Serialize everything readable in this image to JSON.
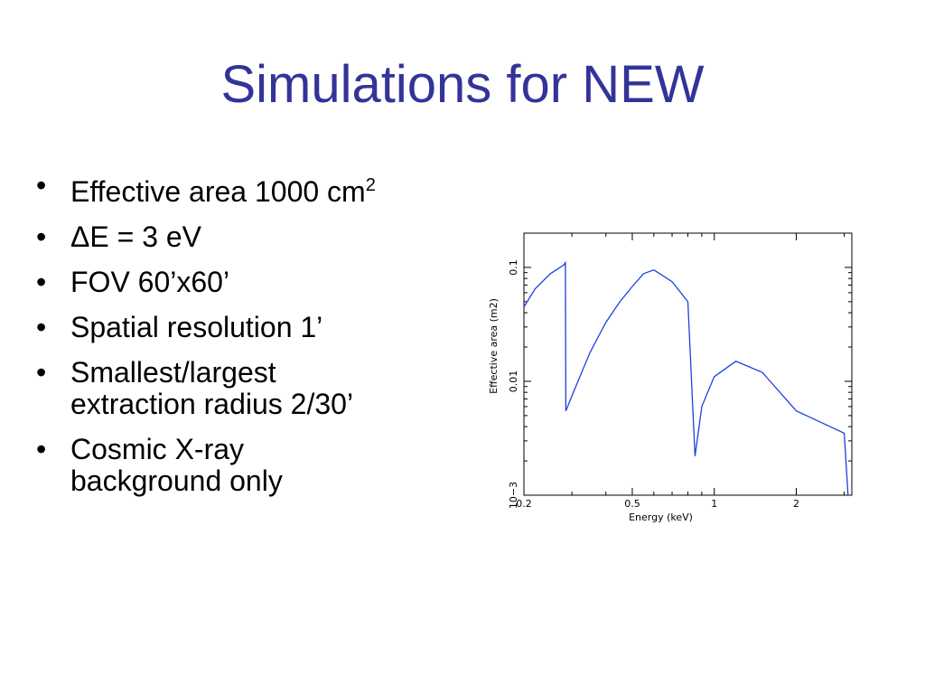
{
  "slide": {
    "title": "Simulations for NEW",
    "bullets": [
      {
        "symbol": "•",
        "lines": [
          "Effective area 1000 cm"
        ],
        "suffix": "2"
      },
      {
        "symbol": "•",
        "lines": [
          "ΔE = 3 eV"
        ]
      },
      {
        "symbol": "•",
        "lines": [
          "FOV 60’x60’"
        ]
      },
      {
        "symbol": "•",
        "lines": [
          "Spatial resolution 1’"
        ]
      },
      {
        "symbol": "•",
        "lines": [
          "Smallest/largest",
          "extraction radius 2/30’"
        ]
      },
      {
        "symbol": "•",
        "lines": [
          "Cosmic X-ray",
          "background only"
        ]
      }
    ]
  },
  "chart_data": {
    "type": "line",
    "title": "",
    "xlabel": "Energy (keV)",
    "ylabel": "Effective area (m2)",
    "xscale": "log",
    "yscale": "log",
    "xlim": [
      0.2,
      3.2
    ],
    "ylim": [
      0.001,
      0.2
    ],
    "grid": false,
    "color": "#1f3fdf",
    "xticks": [
      {
        "value": 0.2,
        "label": "0.2"
      },
      {
        "value": 0.5,
        "label": "0.5"
      },
      {
        "value": 1,
        "label": "1"
      },
      {
        "value": 2,
        "label": "2"
      }
    ],
    "yticks": [
      {
        "value": 0.1,
        "label": "0.1"
      },
      {
        "value": 0.01,
        "label": "0.01"
      },
      {
        "value": 0.001,
        "label": "10−3"
      }
    ],
    "series": [
      {
        "x": [
          0.2,
          0.22,
          0.25,
          0.28,
          0.284,
          0.285,
          0.31,
          0.35,
          0.4,
          0.45,
          0.5,
          0.55,
          0.6,
          0.7,
          0.8,
          0.85,
          0.9,
          1.0,
          1.2,
          1.5,
          2.0,
          3.0,
          3.1
        ],
        "y": [
          0.045,
          0.065,
          0.088,
          0.105,
          0.11,
          0.0055,
          0.009,
          0.018,
          0.033,
          0.05,
          0.068,
          0.088,
          0.095,
          0.075,
          0.05,
          0.0022,
          0.006,
          0.011,
          0.015,
          0.012,
          0.0055,
          0.0035,
          0.001
        ]
      }
    ]
  }
}
